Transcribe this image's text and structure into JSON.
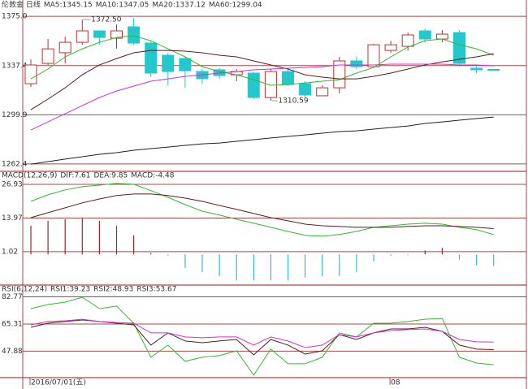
{
  "chart_data": [
    {
      "type": "candlestick",
      "title": "伦敦金 日线",
      "title_color": "#1aa7c7",
      "categories": [
        "2016/07/01(五)",
        null,
        null,
        null,
        null,
        null,
        null,
        null,
        null,
        null,
        null,
        null,
        null,
        null,
        null,
        null,
        null,
        null,
        null,
        null,
        null,
        "08",
        null,
        null,
        null,
        null,
        null,
        null
      ],
      "open": [
        1323.6,
        1339.1,
        1347.2,
        1355.2,
        1363.9,
        1358.3,
        1367.0,
        1354.6,
        1345.3,
        1342.8,
        1332.9,
        1334.2,
        1330.4,
        1331.7,
        1313.1,
        1332.9,
        1323.6,
        1314.4,
        1320.5,
        1341.0,
        1336.6,
        1349.0,
        1352.1,
        1363.9,
        1357.7,
        1362.6,
        1335.4,
        1334.5
      ],
      "high": [
        1342.2,
        1357.7,
        1359.5,
        1372.5,
        1363.9,
        1368.8,
        1373.8,
        1356.4,
        1347.2,
        1344.1,
        1334.8,
        1335.4,
        1334.8,
        1332.9,
        1334.8,
        1334.8,
        1325.5,
        1322.4,
        1344.1,
        1344.1,
        1354.0,
        1356.4,
        1362.6,
        1365.7,
        1364.5,
        1364.5,
        1337.9,
        1334.5
      ],
      "low": [
        1321.2,
        1337.9,
        1339.1,
        1353.3,
        1353.3,
        1350.2,
        1353.3,
        1328.6,
        1322.4,
        1320.5,
        1323.6,
        1327.4,
        1325.5,
        1311.9,
        1310.59,
        1321.8,
        1313.1,
        1314.4,
        1316.2,
        1334.8,
        1336.6,
        1347.2,
        1349.0,
        1355.2,
        1355.2,
        1337.9,
        1331.7,
        1334.2
      ],
      "close": [
        1337.9,
        1350.2,
        1355.2,
        1363.9,
        1358.9,
        1363.9,
        1354.6,
        1331.7,
        1332.9,
        1333.5,
        1327.4,
        1329.8,
        1332.9,
        1313.1,
        1332.9,
        1323.0,
        1315.0,
        1320.5,
        1341.0,
        1336.6,
        1353.3,
        1353.3,
        1360.8,
        1357.7,
        1361.4,
        1339.1,
        1334.2,
        1334.2
      ],
      "high_labels": [
        null,
        null,
        null,
        "1372.50",
        null,
        null,
        null,
        null,
        null,
        null,
        null,
        null,
        null,
        null,
        null,
        null,
        null,
        null,
        null,
        null,
        null,
        null,
        null,
        null,
        null,
        null,
        null,
        null
      ],
      "low_labels": [
        null,
        null,
        null,
        null,
        null,
        null,
        null,
        null,
        null,
        null,
        null,
        null,
        null,
        null,
        "1310.59",
        null,
        null,
        null,
        null,
        null,
        null,
        null,
        null,
        null,
        null,
        null,
        null,
        null
      ],
      "up_color": "#c03030",
      "down_color": "#22c8cc",
      "series": [
        {
          "name": "MA5:1345.15",
          "color": "#33b833",
          "values": [
            1327.3,
            1334.8,
            1344.1,
            1350.2,
            1355.2,
            1358.9,
            1360.1,
            1356.4,
            1350.2,
            1344.1,
            1336.6,
            1332.9,
            1330.4,
            1326.7,
            1322.4,
            1323.0,
            1324.2,
            1325.5,
            1326.7,
            1331.7,
            1336.0,
            1344.1,
            1351.5,
            1356.4,
            1357.7,
            1353.3,
            1350.2,
            1345.3
          ]
        },
        {
          "name": "MA10:1347.05",
          "color": "#5a1e1e",
          "values": [
            1303.8,
            1311.9,
            1320.5,
            1330.4,
            1337.9,
            1342.8,
            1347.2,
            1349.0,
            1349.0,
            1348.4,
            1347.2,
            1345.3,
            1344.1,
            1341.0,
            1337.9,
            1334.8,
            1330.4,
            1328.6,
            1327.3,
            1327.3,
            1329.2,
            1331.7,
            1334.8,
            1337.9,
            1340.3,
            1342.2,
            1344.1,
            1346.5
          ]
        },
        {
          "name": "MA20:1337.12",
          "color": "#cc33cc",
          "values": [
            1288.3,
            1294.5,
            1300.7,
            1306.9,
            1313.1,
            1318.0,
            1321.8,
            1325.5,
            1327.3,
            1329.2,
            1330.4,
            1331.7,
            1332.9,
            1334.2,
            1334.8,
            1335.4,
            1336.0,
            1336.6,
            1337.9,
            1337.9,
            1337.9,
            1338.5,
            1338.5,
            1338.5,
            1338.5,
            1337.9,
            1337.9,
            1337.2
          ]
        },
        {
          "name": "MA60:1299.04",
          "color": "#222222",
          "values": [
            1262.3,
            1264.2,
            1266.1,
            1267.9,
            1269.8,
            1271.0,
            1272.9,
            1274.1,
            1275.3,
            1276.6,
            1277.8,
            1278.4,
            1279.7,
            1280.9,
            1282.2,
            1283.4,
            1284.6,
            1285.9,
            1287.1,
            1287.7,
            1289.0,
            1290.2,
            1291.4,
            1293.3,
            1294.5,
            1295.8,
            1297.0,
            1298.2
          ]
        }
      ],
      "ylim": [
        1257.4,
        1380
      ],
      "yticks": [
        1262.4,
        1299.9,
        1337.4,
        {
          "value": 1375,
          "label": "1375.0"
        }
      ],
      "grid": true
    },
    {
      "type": "macd",
      "title": "MACD(12,26,9)",
      "title_color": "#888888",
      "series": [
        {
          "name": "DIF:7.61",
          "color": "#33b833",
          "values": [
            20.4,
            22.9,
            24.8,
            26.0,
            26.6,
            27.3,
            26.96,
            24.5,
            21.96,
            19.1,
            16.6,
            15.1,
            13.5,
            11.96,
            10.4,
            8.8,
            7.3,
            6.96,
            7.6,
            8.8,
            10.4,
            11.0,
            11.6,
            11.96,
            11.6,
            10.4,
            9.5,
            7.6
          ]
        },
        {
          "name": "DEA:9.85",
          "color": "#5a1e1e",
          "values": [
            14.1,
            16.0,
            17.9,
            19.8,
            21.3,
            22.6,
            23.2,
            23.2,
            22.6,
            21.6,
            20.4,
            18.8,
            17.3,
            15.7,
            14.1,
            12.9,
            11.6,
            11.0,
            10.7,
            10.4,
            10.4,
            10.4,
            10.7,
            11.0,
            11.0,
            10.7,
            10.4,
            9.9
          ]
        },
        {
          "name": "MACD:-4.48",
          "color": "#cc33cc",
          "kind": "bar",
          "up_color": "#a02828",
          "down_color": "#30c0c8",
          "values": [
            11.0,
            12.9,
            13.5,
            14.1,
            12.9,
            11.0,
            7.3,
            0.5,
            -0.5,
            -5.2,
            -6.8,
            -8.4,
            -10.0,
            -10.0,
            -10.0,
            -10.0,
            -9.0,
            -8.4,
            -8.4,
            -6.8,
            -2.7,
            -0.5,
            -0.3,
            1.5,
            2.5,
            -2.0,
            -4.2,
            -4.48
          ]
        }
      ],
      "ylim": [
        -11.5,
        31.6
      ],
      "yticks": [
        1.02,
        13.97,
        26.93
      ],
      "grid": true
    },
    {
      "type": "line",
      "title": "RSI(6,12,24)",
      "title_color": "#888888",
      "series": [
        {
          "name": "RSI1:39.23",
          "color": "#33b833",
          "values": [
            75.2,
            77.8,
            79.4,
            82.5,
            75.2,
            76.8,
            65.8,
            44.0,
            51.8,
            41.4,
            44.0,
            45.0,
            48.1,
            32.5,
            49.2,
            39.8,
            39.8,
            44.0,
            59.6,
            57.0,
            65.8,
            65.8,
            66.9,
            68.4,
            68.9,
            44.0,
            40.3,
            39.2
          ]
        },
        {
          "name": "RSI2:48.93",
          "color": "#5a1e1e",
          "values": [
            63.2,
            65.8,
            66.9,
            67.9,
            66.9,
            65.8,
            64.8,
            51.8,
            59.6,
            54.4,
            53.3,
            54.4,
            55.4,
            45.5,
            55.4,
            51.8,
            46.0,
            48.1,
            58.5,
            55.4,
            59.6,
            62.2,
            62.2,
            63.2,
            60.6,
            51.8,
            49.2,
            48.9
          ]
        },
        {
          "name": "RSI3:53.67",
          "color": "#cc33cc",
          "values": [
            64.8,
            66.9,
            67.4,
            68.4,
            66.9,
            66.3,
            65.8,
            59.6,
            59.6,
            57.0,
            56.5,
            57.0,
            57.0,
            51.8,
            57.0,
            54.4,
            50.2,
            51.8,
            58.5,
            57.0,
            59.6,
            61.1,
            61.7,
            62.2,
            60.6,
            55.4,
            53.9,
            53.7
          ]
        }
      ],
      "ylim": [
        30.9,
        89.8
      ],
      "yticks": [
        47.88,
        65.31,
        82.77
      ],
      "grid": true
    }
  ]
}
